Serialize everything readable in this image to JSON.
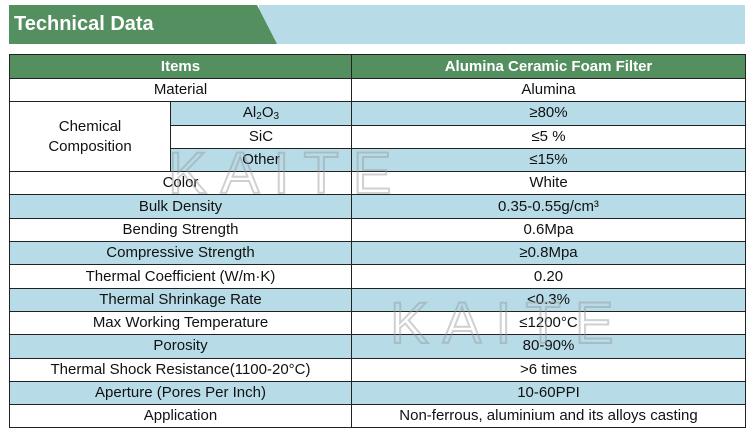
{
  "title": "Technical Data",
  "watermark": "KAITE",
  "colors": {
    "header_green": "#548f5f",
    "stripe_blue": "#b7dce8"
  },
  "table": {
    "headers": [
      "Items",
      "Alumina Ceramic Foam Filter"
    ],
    "material": {
      "label": "Material",
      "value": "Alumina"
    },
    "chemical": {
      "label": "Chemical Composition",
      "rows": [
        {
          "label_main": "Al",
          "sub1": "2",
          "mid": "O",
          "sub2": "3",
          "value": "≥80%"
        },
        {
          "label": "SiC",
          "value": "≤5 %"
        },
        {
          "label": "Other",
          "value": "≤15%"
        }
      ]
    },
    "rows": [
      {
        "label": "Color",
        "value": "White"
      },
      {
        "label": "Bulk Density",
        "value": "0.35-0.55g/cm³"
      },
      {
        "label": "Bending Strength",
        "value": "0.6Mpa"
      },
      {
        "label": "Compressive Strength",
        "value": "≥0.8Mpa"
      },
      {
        "label": "Thermal Coefficient (W/m·K)",
        "value": "0.20"
      },
      {
        "label": "Thermal Shrinkage Rate",
        "value": "<0.3%"
      },
      {
        "label": "Max Working Temperature",
        "value": "≤1200°C"
      },
      {
        "label": "Porosity",
        "value": "80-90%"
      },
      {
        "label": "Thermal Shock Resistance(1100-20°C)",
        "value": ">6 times"
      },
      {
        "label": "Aperture (Pores Per Inch)",
        "value": "10-60PPI"
      },
      {
        "label": "Application",
        "value": "Non-ferrous, aluminium and its alloys casting"
      }
    ]
  }
}
